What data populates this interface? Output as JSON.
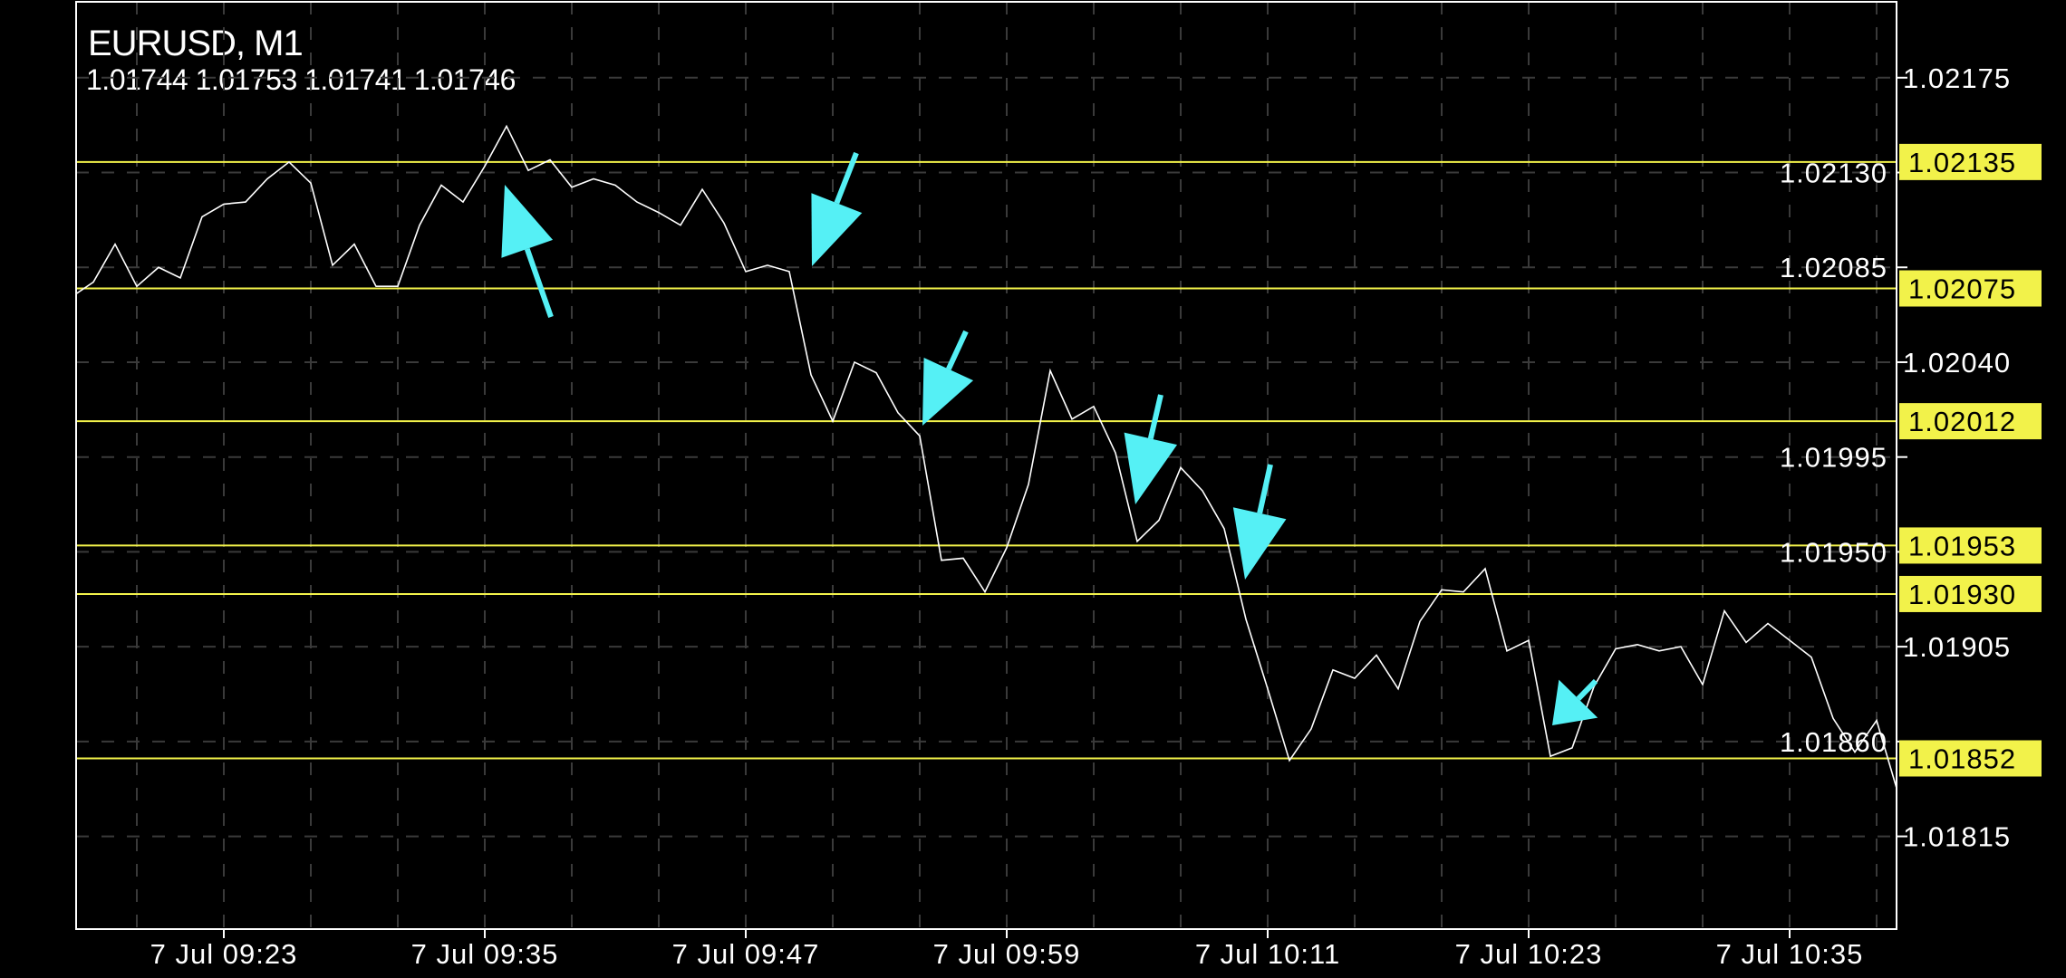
{
  "header": {
    "symbol_timeframe": "EURUSD, M1",
    "ohlc": "1.01744 1.01753 1.01741 1.01746"
  },
  "chart_data": {
    "type": "line",
    "title": "EURUSD, M1",
    "xlabel": "",
    "ylabel": "",
    "ylim": [
      1.01771,
      1.02211
    ],
    "grid": true,
    "y_ticks": [
      "1.02175",
      "1.02130",
      "1.02085",
      "1.02040",
      "1.01995",
      "1.01950",
      "1.01905",
      "1.01860",
      "1.01815"
    ],
    "x_ticks": [
      {
        "t": "09:23",
        "label": "7 Jul 09:23"
      },
      {
        "t": "09:35",
        "label": "7 Jul 09:35"
      },
      {
        "t": "09:47",
        "label": "7 Jul 09:47"
      },
      {
        "t": "09:59",
        "label": "7 Jul 09:59"
      },
      {
        "t": "10:11",
        "label": "7 Jul 10:11"
      },
      {
        "t": "10:23",
        "label": "7 Jul 10:23"
      },
      {
        "t": "10:35",
        "label": "7 Jul 10:35"
      }
    ],
    "x": [
      "09:16",
      "09:17",
      "09:18",
      "09:19",
      "09:20",
      "09:21",
      "09:22",
      "09:23",
      "09:24",
      "09:25",
      "09:26",
      "09:27",
      "09:28",
      "09:29",
      "09:30",
      "09:31",
      "09:32",
      "09:33",
      "09:34",
      "09:35",
      "09:36",
      "09:37",
      "09:38",
      "09:39",
      "09:40",
      "09:41",
      "09:42",
      "09:43",
      "09:44",
      "09:45",
      "09:46",
      "09:47",
      "09:48",
      "09:49",
      "09:50",
      "09:51",
      "09:52",
      "09:53",
      "09:54",
      "09:55",
      "09:56",
      "09:57",
      "09:58",
      "09:59",
      "10:00",
      "10:01",
      "10:02",
      "10:03",
      "10:04",
      "10:05",
      "10:06",
      "10:07",
      "10:08",
      "10:09",
      "10:10",
      "10:11",
      "10:12",
      "10:13",
      "10:14",
      "10:15",
      "10:16",
      "10:17",
      "10:18",
      "10:19",
      "10:20",
      "10:21",
      "10:22",
      "10:23",
      "10:24",
      "10:25",
      "10:26",
      "10:27",
      "10:28",
      "10:29",
      "10:30",
      "10:31",
      "10:32",
      "10:33",
      "10:34",
      "10:35",
      "10:36",
      "10:37",
      "10:38",
      "10:39",
      "10:40",
      "10:41"
    ],
    "series": [
      {
        "values": [
          1.02071,
          1.02078,
          1.02096,
          1.02076,
          1.02085,
          1.0208,
          1.02109,
          1.02115,
          1.02116,
          1.02127,
          1.02135,
          1.02125,
          1.02086,
          1.02096,
          1.02076,
          1.02076,
          1.02105,
          1.02124,
          1.02116,
          1.02133,
          1.02152,
          1.02131,
          1.02136,
          1.02123,
          1.02127,
          1.02124,
          1.02116,
          1.02111,
          1.02105,
          1.02122,
          1.02106,
          1.02083,
          1.02086,
          1.02083,
          1.02034,
          1.02012,
          1.0204,
          1.02035,
          1.02016,
          1.02005,
          1.01946,
          1.01947,
          1.01931,
          1.01952,
          1.01982,
          1.02036,
          1.02013,
          1.02019,
          1.01997,
          1.01955,
          1.01965,
          1.0199,
          1.01979,
          1.01961,
          1.01918,
          1.01885,
          1.01851,
          1.01866,
          1.01894,
          1.0189,
          1.01901,
          1.01885,
          1.01917,
          1.01932,
          1.01931,
          1.01942,
          1.01903,
          1.01908,
          1.01853,
          1.01857,
          1.01886,
          1.01904,
          1.01906,
          1.01903,
          1.01905,
          1.01887,
          1.01922,
          1.01907,
          1.01916,
          1.01908,
          1.019,
          1.01871,
          1.01855,
          1.0187,
          1.01835,
          1.01825
        ]
      }
    ],
    "levels": [
      "1.02135",
      "1.02075",
      "1.02012",
      "1.01953",
      "1.01930",
      "1.01852"
    ],
    "arrows": [
      {
        "direction": "up",
        "near": "09:37"
      },
      {
        "direction": "down",
        "near": "09:49"
      },
      {
        "direction": "down",
        "near": "09:54"
      },
      {
        "direction": "down",
        "near": "10:03"
      },
      {
        "direction": "down",
        "near": "10:08"
      },
      {
        "direction": "down",
        "near": "10:22"
      }
    ],
    "colors": {
      "background": "#000000",
      "line": "#ffffff",
      "level": "#f2f24a",
      "badge": "#f2f24a",
      "arrow": "#55f0f5",
      "grid": "#3a3a3a"
    }
  }
}
